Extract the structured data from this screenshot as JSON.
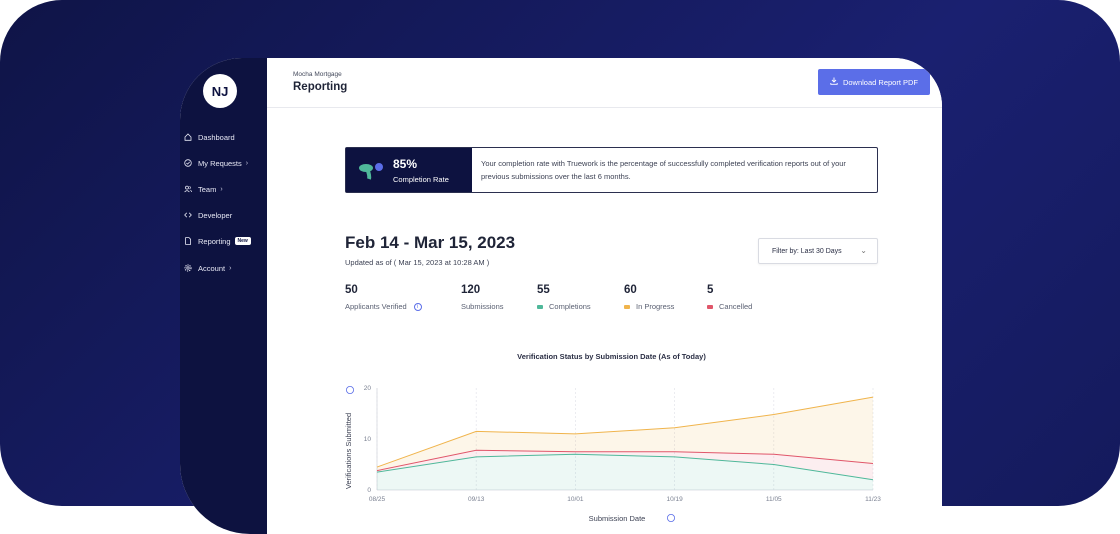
{
  "app": {
    "org": "Mocha Mortgage",
    "page_title": "Reporting",
    "download_label": "Download Report PDF",
    "avatar_initials": "NJ"
  },
  "sidebar": {
    "items": [
      {
        "label": "Dashboard",
        "icon": "home-icon",
        "chevron": false,
        "badge": ""
      },
      {
        "label": "My Requests",
        "icon": "check-circle-icon",
        "chevron": true,
        "badge": ""
      },
      {
        "label": "Team",
        "icon": "users-icon",
        "chevron": true,
        "badge": ""
      },
      {
        "label": "Developer",
        "icon": "code-icon",
        "chevron": false,
        "badge": ""
      },
      {
        "label": "Reporting",
        "icon": "document-icon",
        "chevron": false,
        "badge": "New"
      },
      {
        "label": "Account",
        "icon": "gear-icon",
        "chevron": true,
        "badge": ""
      }
    ]
  },
  "banner": {
    "percent": "85%",
    "label": "Completion Rate",
    "text": "Your completion rate with Truework is the percentage of successfully completed verification reports out of your previous submissions over the last 6 months."
  },
  "report": {
    "range_title": "Feb 14 - Mar 15, 2023",
    "updated": "Updated as of ( Mar 15, 2023 at 10:28 AM )",
    "filter_label": "Filter by: Last 30 Days"
  },
  "stats": [
    {
      "value": "50",
      "label": "Applicants Verified",
      "color": "",
      "info": true
    },
    {
      "value": "120",
      "label": "Submissions",
      "color": "",
      "info": false
    },
    {
      "value": "55",
      "label": "Completions",
      "color": "#4fb89a",
      "info": false
    },
    {
      "value": "60",
      "label": "In Progress",
      "color": "#f0b44c",
      "info": false
    },
    {
      "value": "5",
      "label": "Cancelled",
      "color": "#e0566a",
      "info": false
    }
  ],
  "chart_data": {
    "type": "area",
    "title": "Verification Status by Submission Date (As of Today)",
    "xlabel": "Submission Date",
    "ylabel": "Verifications Submitted",
    "x": [
      "08/25",
      "09/13",
      "10/01",
      "10/19",
      "11/05",
      "11/23"
    ],
    "ylim": [
      0,
      20
    ],
    "yticks": [
      0,
      10,
      20
    ],
    "grid": true,
    "series": [
      {
        "name": "Completions",
        "color": "#4fb89a",
        "values": [
          3.5,
          6.5,
          7,
          6.5,
          5,
          2
        ]
      },
      {
        "name": "Cancelled",
        "color": "#e0566a",
        "values": [
          3.8,
          7.8,
          7.5,
          7.5,
          7,
          5.2
        ]
      },
      {
        "name": "In Progress",
        "color": "#f0b44c",
        "values": [
          4.5,
          11.5,
          11,
          12.2,
          14.8,
          18.2
        ]
      }
    ]
  }
}
